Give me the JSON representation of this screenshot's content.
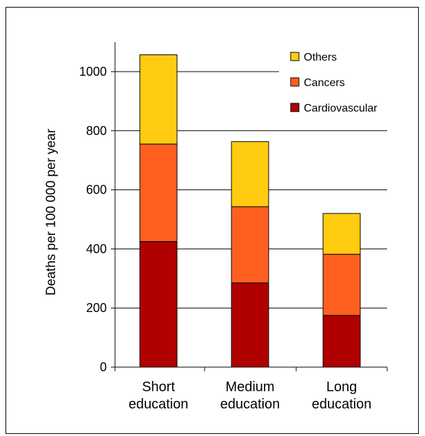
{
  "chart_data": {
    "type": "bar",
    "stacked": true,
    "categories": [
      [
        "Short",
        "education"
      ],
      [
        "Medium",
        "education"
      ],
      [
        "Long",
        "education"
      ]
    ],
    "series": [
      {
        "name": "Cardiovascular",
        "color": "#b00000",
        "values": [
          425,
          285,
          175
        ]
      },
      {
        "name": "Cancers",
        "color": "#ff6020",
        "values": [
          330,
          258,
          207
        ]
      },
      {
        "name": "Others",
        "color": "#ffcc11",
        "values": [
          302,
          220,
          138
        ]
      }
    ],
    "title": "",
    "xlabel": "",
    "ylabel": "Deaths per 100 000 per year",
    "ylim": [
      0,
      1100
    ],
    "yticks": [
      0,
      200,
      400,
      600,
      800,
      1000
    ],
    "ytick_labels": [
      "0",
      "200",
      "400",
      "600",
      "800",
      "1000"
    ],
    "grid": true,
    "legend_position": "top-right",
    "legend_order": [
      "Others",
      "Cancers",
      "Cardiovascular"
    ]
  }
}
